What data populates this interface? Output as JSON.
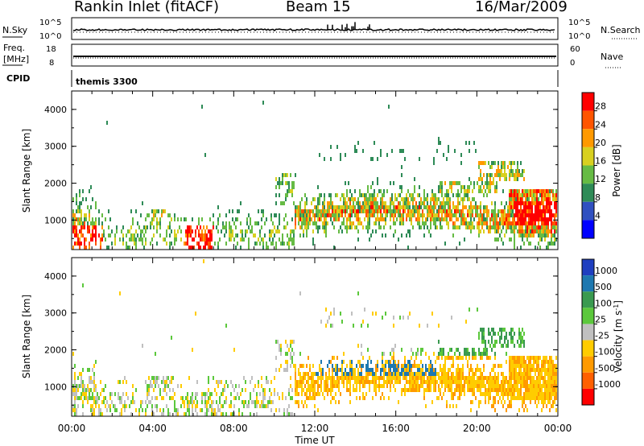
{
  "header": {
    "station": "Rankin Inlet (fitACF)",
    "beam": "Beam 15",
    "date": "16/Mar/2009"
  },
  "strip_labels": {
    "nsky": "N.Sky",
    "nsearch": "N.Search",
    "freq_line1": "Freq.",
    "freq_line2": "[MHz]",
    "nave": "Nave",
    "cpid": "CPID",
    "cpid_value": "themis 3300"
  },
  "strip_ticks": {
    "noise_left_top": "10^5",
    "noise_left_bottom": "10^0",
    "noise_right_top": "10^5",
    "noise_right_bottom": "10^0",
    "freq_left_top": "18",
    "freq_left_bottom": "8",
    "nave_right_top": "60",
    "nave_right_bottom": "0"
  },
  "colors": {
    "power_scale": [
      "#0000ff",
      "#3050c0",
      "#2e8b57",
      "#66bb44",
      "#d8d020",
      "#ff9900",
      "#ff5500",
      "#ff0000"
    ],
    "velocity_scale": [
      "#ff0000",
      "#ff6000",
      "#ff9a00",
      "#ffcc00",
      "#c0c0c0",
      "#5cc83c",
      "#3a9a50",
      "#1e78b0",
      "#1f3fc0"
    ]
  },
  "chart_data": [
    {
      "type": "heatmap",
      "name": "power",
      "ylabel": "Slant Range [km]",
      "yticks": [
        "1000",
        "2000",
        "3000",
        "4000"
      ],
      "ylim": [
        200,
        4500
      ],
      "xlim": [
        0,
        24
      ],
      "colorbar_label": "Power [dB]",
      "colorbar_ticks": [
        "4",
        "8",
        "12",
        "16",
        "20",
        "24",
        "28"
      ],
      "colorbar_range": [
        0,
        32
      ]
    },
    {
      "type": "heatmap",
      "name": "velocity",
      "ylabel": "Slant Range [km]",
      "yticks": [
        "1000",
        "2000",
        "3000",
        "4000"
      ],
      "ylim": [
        200,
        4500
      ],
      "xlim": [
        0,
        24
      ],
      "colorbar_label": "Velocity [m s",
      "colorbar_label_sup": "-1",
      "colorbar_label_end": "]",
      "colorbar_ticks": [
        "1000",
        "500",
        "100",
        "25",
        "-25",
        "-100",
        "-500",
        "-1000"
      ]
    }
  ],
  "x_axis": {
    "ticks": [
      "00:00",
      "04:00",
      "08:00",
      "12:00",
      "16:00",
      "20:00",
      "00:00"
    ],
    "label": "Time UT"
  }
}
